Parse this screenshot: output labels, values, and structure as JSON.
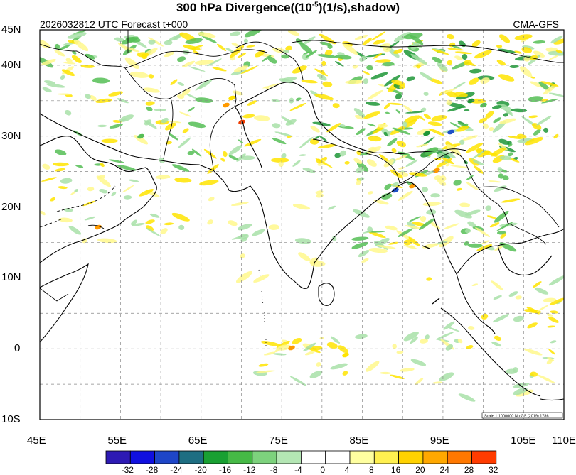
{
  "header": {
    "title_main": "300 hPa Divergence((10",
    "title_sup": "-5",
    "title_end": ")(1/s),shadow)",
    "subtitle_left": "2026032812 UTC Forecast t+000",
    "subtitle_right": "CMA-GFS"
  },
  "map": {
    "lon_range": [
      45,
      110
    ],
    "lat_range": [
      -10,
      45
    ],
    "grid_style": "dashed",
    "lat_ticks": [
      {
        "value": 45,
        "label": "45N"
      },
      {
        "value": 40,
        "label": "40N"
      },
      {
        "value": 30,
        "label": "30N"
      },
      {
        "value": 20,
        "label": "20N"
      },
      {
        "value": 10,
        "label": "10N"
      },
      {
        "value": 0,
        "label": "0"
      },
      {
        "value": -10,
        "label": "10S"
      }
    ],
    "lon_ticks": [
      {
        "value": 45,
        "label": "45E"
      },
      {
        "value": 55,
        "label": "55E"
      },
      {
        "value": 65,
        "label": "65E"
      },
      {
        "value": 75,
        "label": "75E"
      },
      {
        "value": 85,
        "label": "85E"
      },
      {
        "value": 95,
        "label": "95E"
      },
      {
        "value": 105,
        "label": "105E"
      },
      {
        "value": 110,
        "label": "110E"
      }
    ],
    "scale_note": "Scale 1:1000000 No:GS (2019) 1786"
  },
  "colorbar": {
    "labels": [
      "-32",
      "-28",
      "-24",
      "-20",
      "-16",
      "-12",
      "-8",
      "-4",
      "0",
      "4",
      "8",
      "16",
      "20",
      "24",
      "28",
      "32"
    ],
    "colors": [
      "#2d1ab4",
      "#1010e0",
      "#1e46c8",
      "#1e6e82",
      "#19a032",
      "#46b946",
      "#7dd27d",
      "#b4e6b4",
      "#ffffff",
      "#ffffff",
      "#ffffa0",
      "#fff050",
      "#ffd200",
      "#ffa800",
      "#ff7800",
      "#ff3c00"
    ]
  },
  "shading": {
    "yellow": "#ffe400",
    "yellow_light": "#fff88c",
    "green_light": "#a8e0a8",
    "green": "#55be55",
    "green_dark": "#1e9637",
    "orange": "#ff9a00",
    "red": "#f03c00",
    "blue": "#1e50c8"
  }
}
